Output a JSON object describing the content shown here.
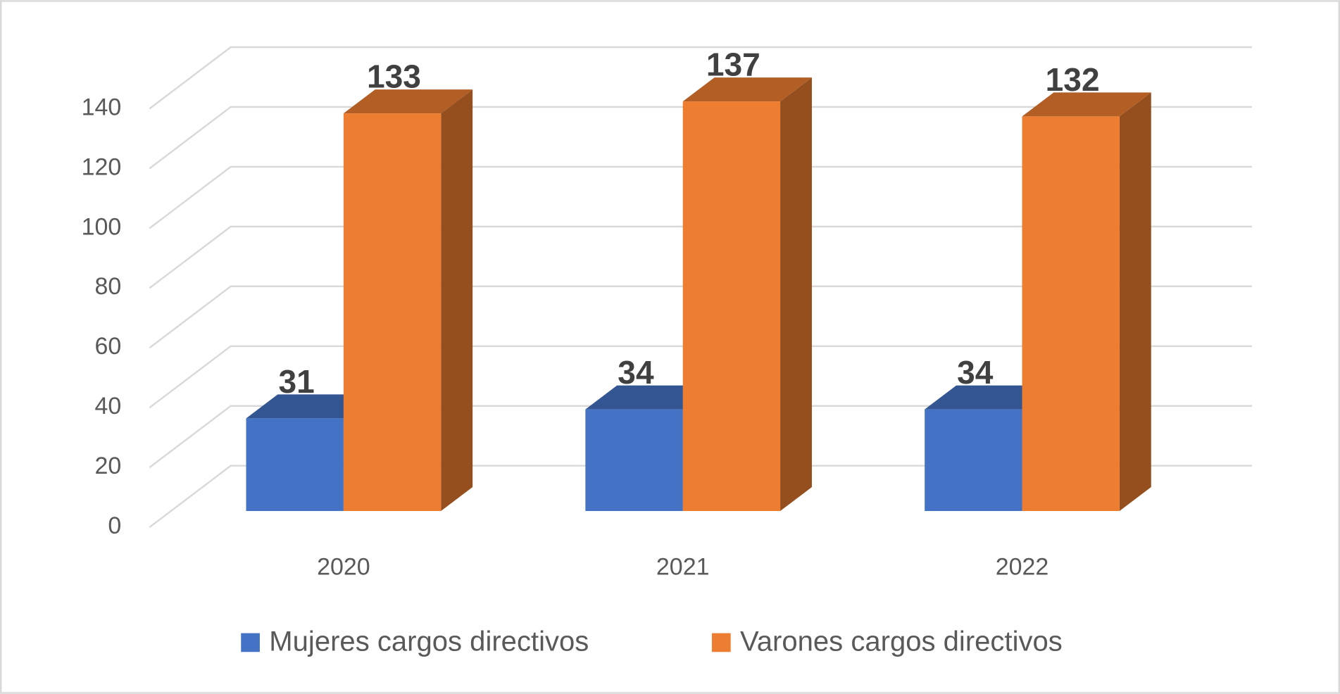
{
  "chart_data": {
    "type": "bar3d",
    "categories": [
      "2020",
      "2021",
      "2022"
    ],
    "series": [
      {
        "name": "Mujeres cargos directivos",
        "color": "#4472c4",
        "values": [
          31,
          34,
          34
        ]
      },
      {
        "name": "Varones cargos directivos",
        "color": "#ed7d31",
        "values": [
          133,
          137,
          132
        ]
      }
    ],
    "ylim": [
      0,
      140
    ],
    "yticks": [
      0,
      20,
      40,
      60,
      80,
      100,
      120,
      140
    ],
    "grid": true,
    "legend": "bottom"
  }
}
